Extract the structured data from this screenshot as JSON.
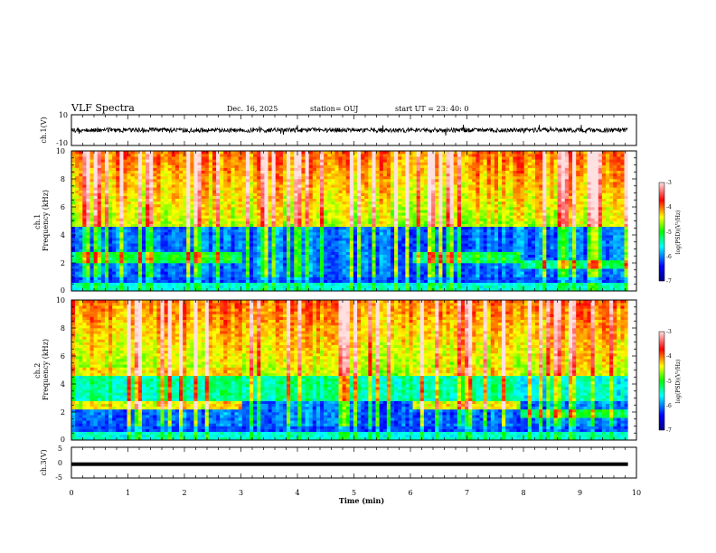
{
  "header": {
    "title": "VLF Spectra",
    "date": "Dec. 16, 2025",
    "station": "station= OUJ",
    "start": "start  UT  =   23: 40: 0"
  },
  "chart_data": [
    {
      "type": "line",
      "panel": "waveform-ch1",
      "ylabel": "ch.1(V)",
      "ylim": [
        -10,
        10
      ],
      "yticks": [
        "10",
        "-10"
      ],
      "x_range_min": [
        0,
        9.85
      ],
      "baseline_v": 0,
      "color": "#000000"
    },
    {
      "type": "heatmap",
      "panel": "spectrogram-ch1",
      "ylabel": "ch.1\nFrequency (kHz)",
      "ylim": [
        0,
        10
      ],
      "yticks": [
        "0",
        "2",
        "4",
        "6",
        "8",
        "10"
      ],
      "colorbar": {
        "label": "log(PSD)(V²/Hz)",
        "range": [
          -7,
          -3
        ],
        "ticks": [
          "-3",
          "-4",
          "-5",
          "-6",
          "-7"
        ]
      }
    },
    {
      "type": "heatmap",
      "panel": "spectrogram-ch2",
      "ylabel": "ch.2\nFrequency (kHz)",
      "ylim": [
        0,
        10
      ],
      "yticks": [
        "0",
        "2",
        "4",
        "6",
        "8",
        "10"
      ],
      "colorbar": {
        "label": "log(PSD)(V²/Hz)",
        "range": [
          -7,
          -3
        ],
        "ticks": [
          "-3",
          "-4",
          "-5",
          "-6",
          "-7"
        ]
      }
    },
    {
      "type": "line",
      "panel": "waveform-ch3",
      "ylabel": "ch.3(V)",
      "ylim": [
        -5,
        5
      ],
      "yticks": [
        "5",
        "0",
        "-5"
      ],
      "level_v": -0.5,
      "color": "#000000"
    }
  ],
  "xaxis": {
    "label": "Time  (min)",
    "ticks": [
      "0",
      "1",
      "2",
      "3",
      "4",
      "5",
      "6",
      "7",
      "8",
      "9",
      "10"
    ],
    "range": [
      0,
      10
    ]
  }
}
